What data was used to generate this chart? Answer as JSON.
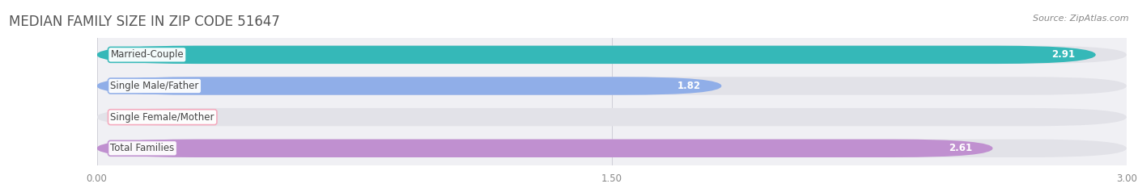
{
  "title": "MEDIAN FAMILY SIZE IN ZIP CODE 51647",
  "source": "Source: ZipAtlas.com",
  "categories": [
    "Married-Couple",
    "Single Male/Father",
    "Single Female/Mother",
    "Total Families"
  ],
  "values": [
    2.91,
    1.82,
    0.0,
    2.61
  ],
  "bar_colors": [
    "#35b8b8",
    "#90aee8",
    "#f5a8bc",
    "#c090d0"
  ],
  "xlim": [
    0,
    3.0
  ],
  "xticks": [
    0.0,
    1.5,
    3.0
  ],
  "xtick_labels": [
    "0.00",
    "1.50",
    "3.00"
  ],
  "page_background": "#ffffff",
  "chart_background": "#f0f0f4",
  "bar_bg_color": "#e2e2e8",
  "title_fontsize": 12,
  "source_fontsize": 8,
  "bar_height": 0.58,
  "label_fontsize": 8.5,
  "value_fontsize": 8.5,
  "title_color": "#555555",
  "source_color": "#888888",
  "tick_color": "#888888",
  "value_label_color": "white",
  "cat_label_color": "#444444"
}
